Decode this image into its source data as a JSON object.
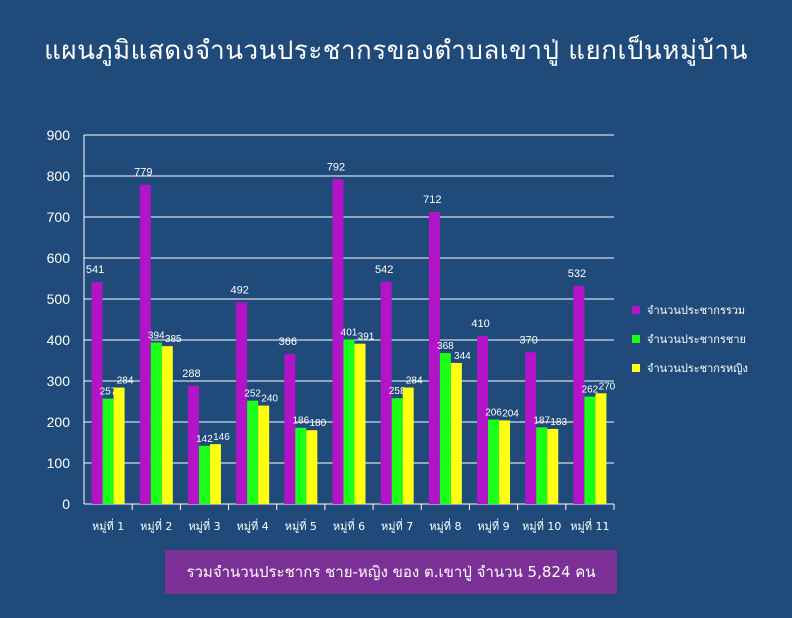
{
  "title": "แผนภูมิแสดงจำนวนประชากรของตำบลเขาปู่ แยกเป็นหมู่บ้าน",
  "footer": "รวมจำนวนประชากร ชาย-หญิง ของ ต.เขาปู่ จำนวน  5,824  คน",
  "colors": {
    "background": "#1f4a7a",
    "total": "#b414c8",
    "male": "#19ff19",
    "female": "#ffff14",
    "footer_box": "#7b3096"
  },
  "chart_data": {
    "type": "bar",
    "categories": [
      "หมู่ที่ 1",
      "หมู่ที่ 2",
      "หมู่ที่ 3",
      "หมู่ที่ 4",
      "หมู่ที่ 5",
      "หมู่ที่ 6",
      "หมู่ที่ 7",
      "หมู่ที่ 8",
      "หมู่ที่ 9",
      "หมู่ที่ 10",
      "หมู่ที่ 11"
    ],
    "series": [
      {
        "name": "จำนวนประชากรรวม",
        "color": "#b414c8",
        "values": [
          541,
          779,
          288,
          492,
          366,
          792,
          542,
          712,
          410,
          370,
          532
        ]
      },
      {
        "name": "จำนวนประชากรชาย",
        "color": "#19ff19",
        "values": [
          257,
          394,
          142,
          252,
          186,
          401,
          258,
          368,
          206,
          187,
          262
        ]
      },
      {
        "name": "จำนวนประชากรหญิง",
        "color": "#ffff14",
        "values": [
          284,
          385,
          146,
          240,
          180,
          391,
          284,
          344,
          204,
          183,
          270
        ]
      }
    ],
    "yticks": [
      "0",
      "100",
      "200",
      "300",
      "400",
      "500",
      "600",
      "700",
      "800",
      "900"
    ],
    "ylim": [
      0,
      900
    ],
    "grid": true,
    "legend_position": "right"
  }
}
